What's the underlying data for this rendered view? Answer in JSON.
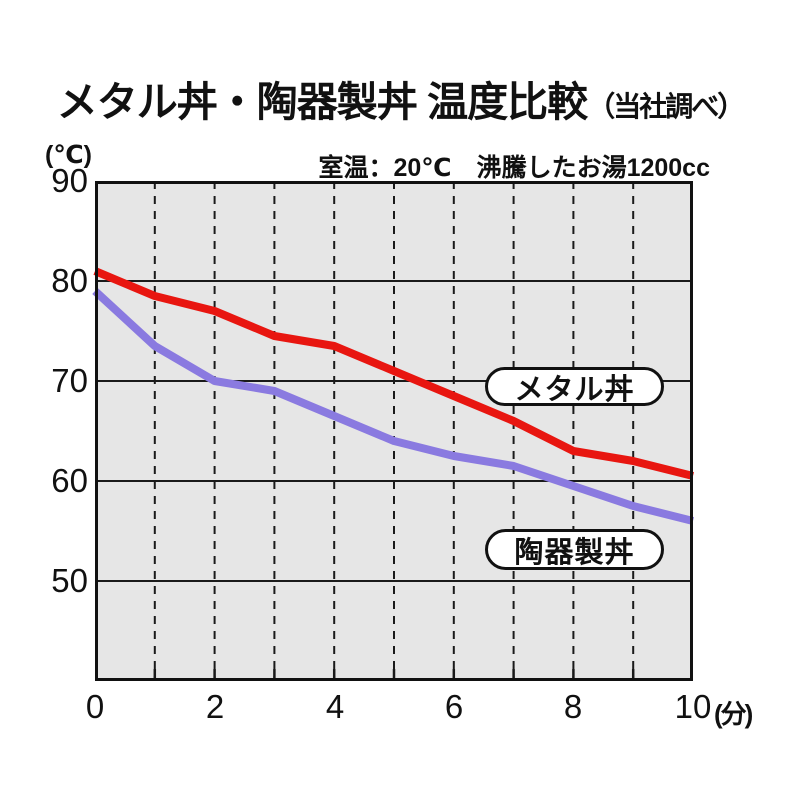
{
  "title": {
    "main": "メタル丼・陶器製丼 温度比較",
    "note": "（当社調べ）"
  },
  "subtitle": "室温：20℃　沸騰したお湯1200cc",
  "axes": {
    "y_unit": "(℃)",
    "x_unit": "(分)",
    "y_tick_labels": [
      "90",
      "80",
      "70",
      "60",
      "50"
    ],
    "x_tick_labels": [
      "0",
      "2",
      "4",
      "6",
      "8",
      "10"
    ]
  },
  "colors": {
    "metal_line": "#e81610",
    "ceramic_line": "#8a7ae0",
    "grid": "#1a1a1a",
    "border": "#111111",
    "plot_bg": "#e6e6e6",
    "text": "#111111"
  },
  "chart_data": {
    "type": "line",
    "title": "メタル丼・陶器製丼 温度比較（当社調べ）",
    "subtitle": "室温：20℃　沸騰したお湯1200cc",
    "xlabel": "(分)",
    "ylabel": "(℃)",
    "x": [
      0,
      1,
      2,
      3,
      4,
      5,
      6,
      7,
      8,
      9,
      10
    ],
    "xlim": [
      0,
      10
    ],
    "ylim": [
      40,
      90
    ],
    "yticks": [
      90,
      80,
      70,
      60,
      50
    ],
    "xticks": [
      0,
      2,
      4,
      6,
      8,
      10
    ],
    "grid_vlines_x": [
      1,
      2,
      3,
      4,
      5,
      6,
      7,
      8,
      9
    ],
    "grid_hlines_y": [
      80,
      70,
      60,
      50
    ],
    "grid": "horizontal solid, vertical dashed",
    "legend_position": "labels-on-chart",
    "series": [
      {
        "name": "メタル丼",
        "color": "#e81610",
        "values": [
          81,
          78.5,
          77,
          74.5,
          73.5,
          71,
          68.5,
          66,
          63,
          62,
          60.5
        ]
      },
      {
        "name": "陶器製丼",
        "color": "#8a7ae0",
        "values": [
          79,
          73.5,
          70,
          69,
          66.5,
          64,
          62.5,
          61.5,
          59.5,
          57.5,
          56
        ]
      }
    ]
  }
}
